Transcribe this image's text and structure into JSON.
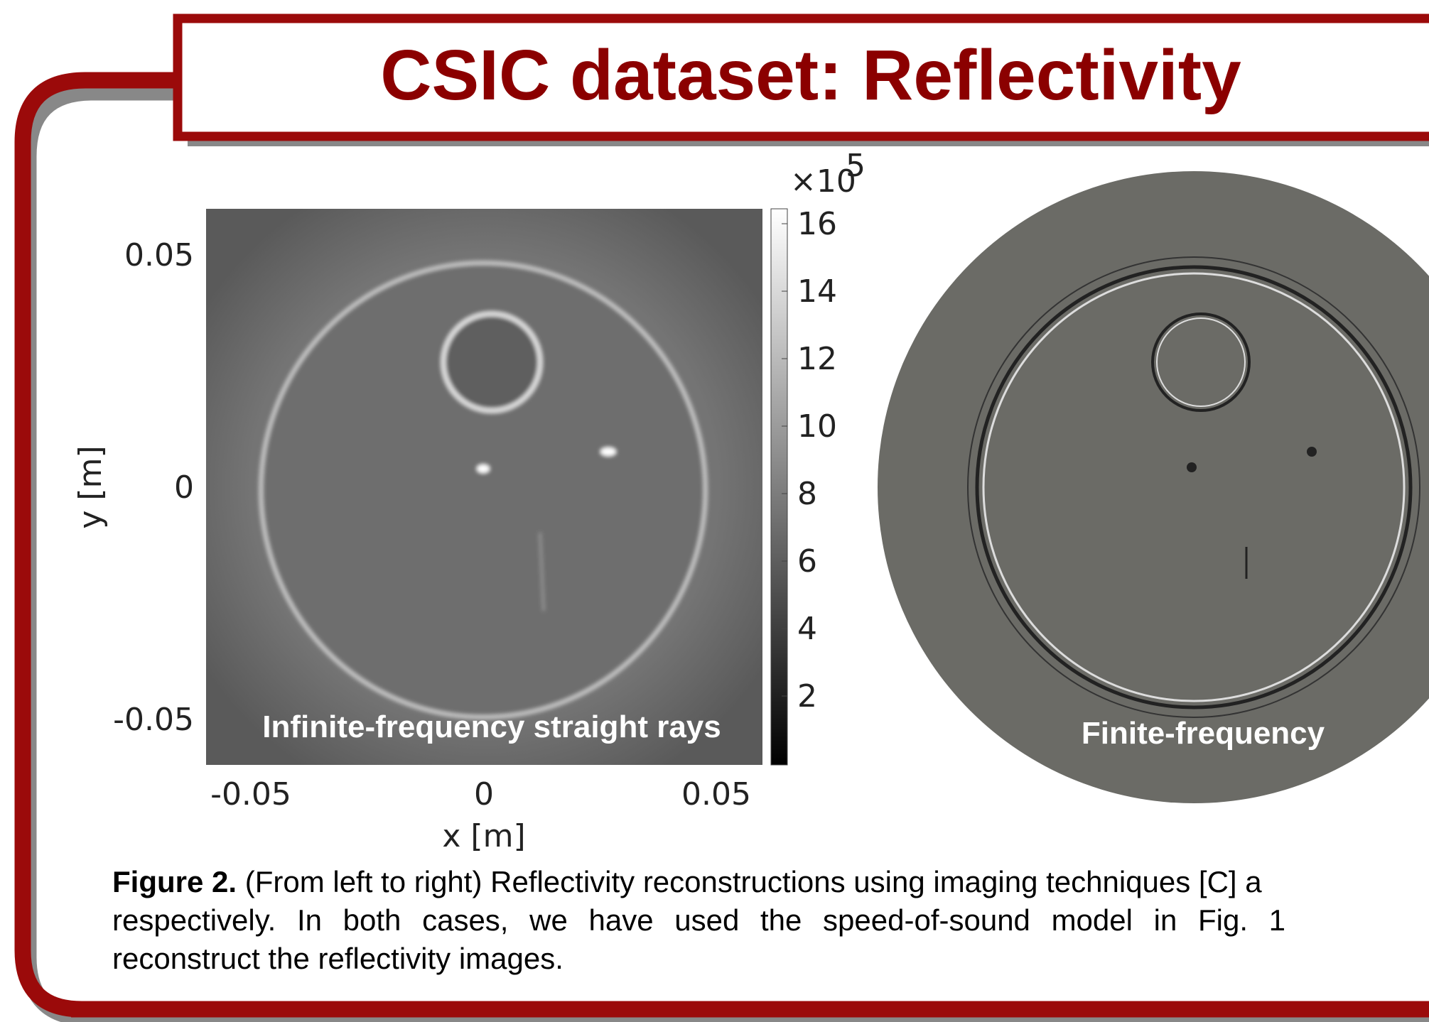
{
  "header": {
    "title": "CSIC dataset: Reflectivity"
  },
  "figure": {
    "left_panel": {
      "label": "Infinite-frequency straight rays",
      "x_label": "x [m]",
      "y_label": "y [m]",
      "x_ticks": [
        "-0.05",
        "0",
        "0.05"
      ],
      "y_ticks": [
        "0.05",
        "0",
        "-0.05"
      ],
      "colorbar": {
        "multiplier": "×10",
        "exponent": "5",
        "ticks": [
          "16",
          "14",
          "12",
          "10",
          "8",
          "6",
          "4",
          "2"
        ]
      }
    },
    "right_panel": {
      "label": "Finite-frequency"
    },
    "caption": {
      "label": "Figure 2.",
      "lines": [
        " (From left to right) Reflectivity reconstructions using imaging techniques [C] a",
        "respectively. In both cases, we have used the speed-of-sound model in Fig. 1",
        "reconstruct the reflectivity images."
      ]
    }
  }
}
